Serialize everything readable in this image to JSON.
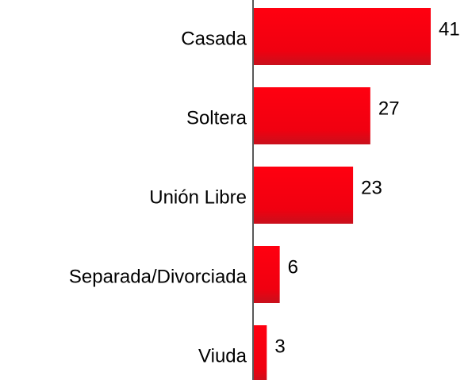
{
  "chart_data": {
    "type": "barh",
    "categories": [
      "Casada",
      "Soltera",
      "Unión Libre",
      "Separada/Divorciada",
      "Viuda"
    ],
    "values": [
      41,
      27,
      23,
      6,
      3
    ],
    "color": "#ff0000"
  }
}
